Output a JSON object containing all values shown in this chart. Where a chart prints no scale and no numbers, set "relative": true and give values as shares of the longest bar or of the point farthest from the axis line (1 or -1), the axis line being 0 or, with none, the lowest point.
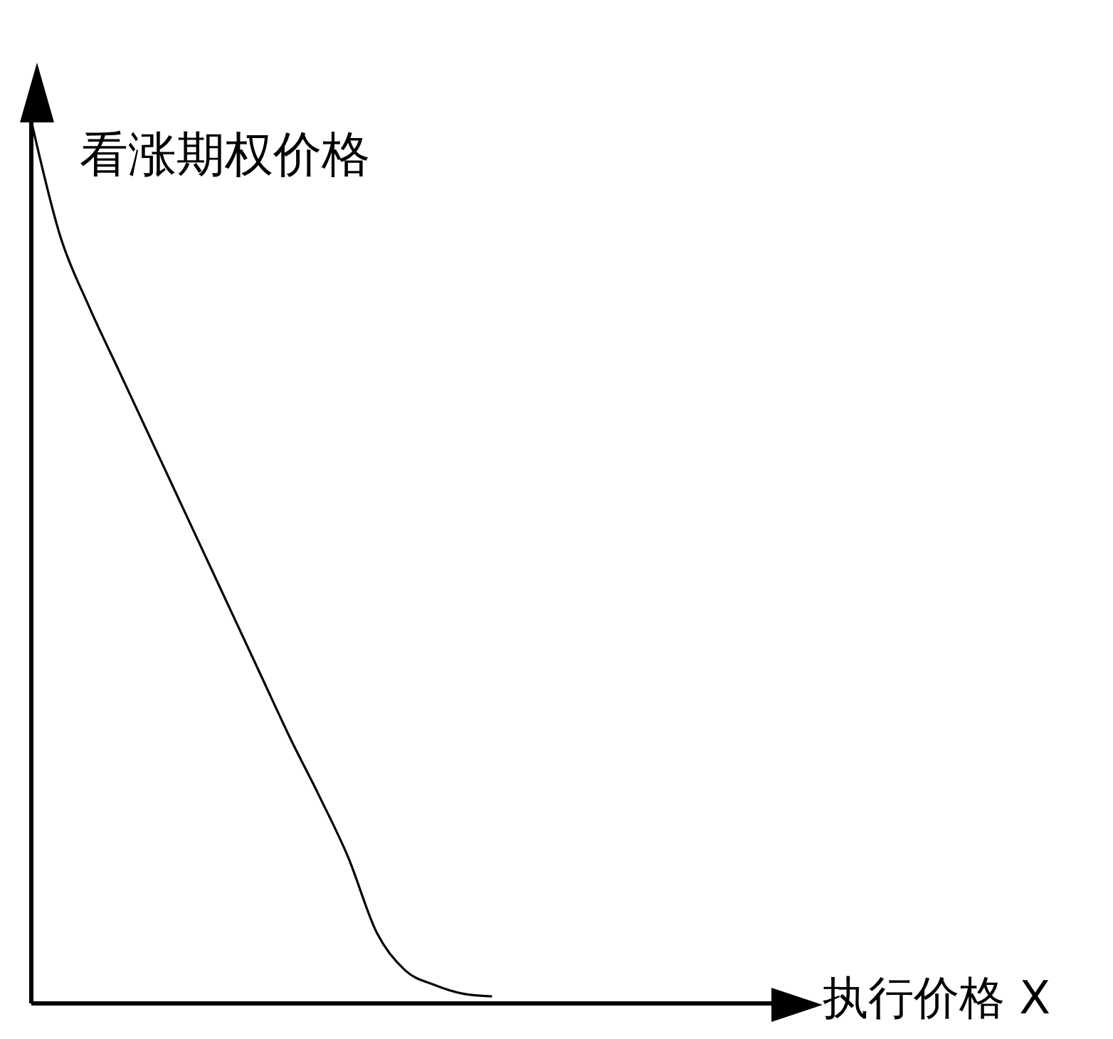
{
  "chart_data": {
    "type": "line",
    "xlabel": "执行价格 X",
    "ylabel": "看涨期权价格",
    "relative": true,
    "marker": "none",
    "color": "#000000",
    "categories": [
      null,
      null,
      null,
      null,
      null,
      null,
      null,
      null,
      null,
      null,
      null,
      null,
      null,
      null,
      null,
      null,
      null,
      null,
      null,
      null,
      null,
      null,
      null,
      null,
      null,
      null,
      null
    ],
    "values": [
      1.0,
      0.87,
      0.79,
      0.72,
      0.65,
      0.58,
      0.51,
      0.44,
      0.37,
      0.3,
      0.235,
      0.166,
      0.08,
      0.037,
      0.021,
      0.011,
      0.008,
      null,
      null,
      null,
      null,
      null,
      null,
      null,
      null,
      null,
      null
    ]
  }
}
